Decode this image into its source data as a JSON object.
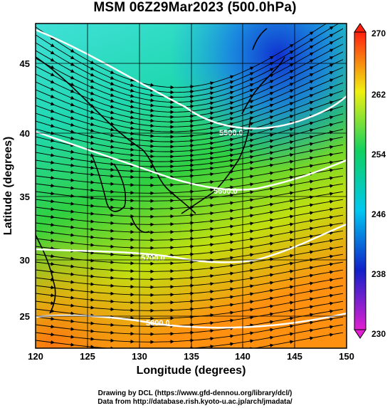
{
  "title": "MSM 06Z29Mar2023 (500.0hPa)",
  "x_axis": {
    "label": "Longitude (degrees)",
    "ticks": [
      "120",
      "125",
      "130",
      "135",
      "140",
      "145",
      "150"
    ]
  },
  "y_axis": {
    "label": "Latitude  (degrees)",
    "ticks": [
      "25",
      "30",
      "35",
      "40",
      "45"
    ]
  },
  "colorbar": {
    "ticks": [
      "230",
      "238",
      "246",
      "254",
      "262",
      "270"
    ],
    "colors": [
      "#e020d0",
      "#1020c8",
      "#00c8f0",
      "#10d060",
      "#f0f010",
      "#ff2010"
    ]
  },
  "contours": [
    {
      "label": "5500.0"
    },
    {
      "label": "5600.0"
    },
    {
      "label": "5700.0"
    },
    {
      "label": "5800.0"
    }
  ],
  "credits": {
    "line1": "Drawing by DCL (https://www.gfd-dennou.org/library/dcl/)",
    "line2": "Data from http://database.rish.kyoto-u.ac.jp/arch/jmadata/"
  },
  "map_data": {
    "lon_range": [
      120,
      150
    ],
    "lat_range": [
      22.5,
      48
    ],
    "field": "temperature (K)",
    "field_range": [
      230,
      270
    ],
    "overlay": "wind streamlines and geopotential height contours"
  }
}
